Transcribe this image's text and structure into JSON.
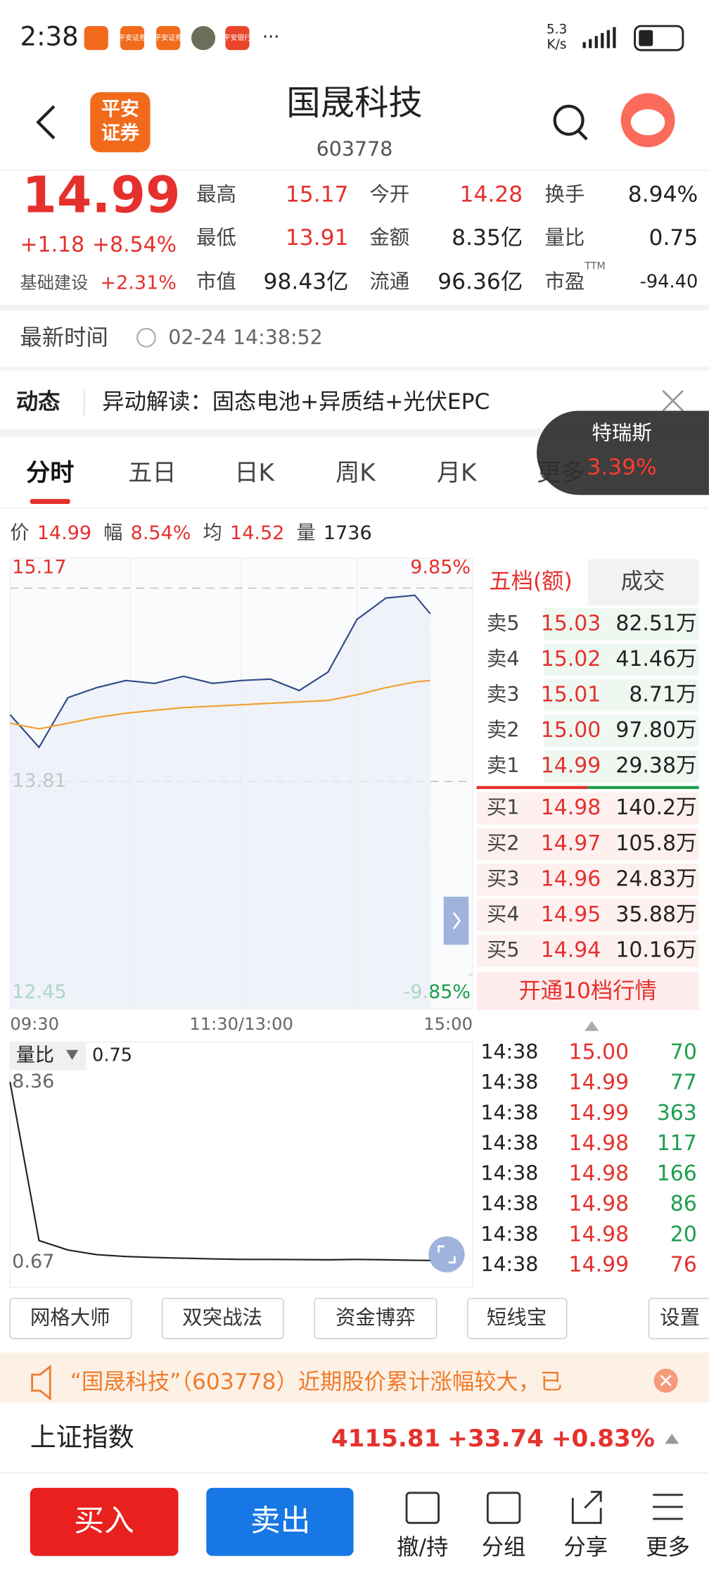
{
  "status_bar": {
    "time": "2:38",
    "apps": [
      "平安证券",
      "平安证券",
      "平安银行"
    ],
    "more": "···",
    "speed": "5.3",
    "speed_unit": "K/s"
  },
  "header": {
    "logo": [
      "平安",
      "证券"
    ],
    "title": "国晟科技",
    "code": "603778"
  },
  "quote": {
    "price": "14.99",
    "change": "+1.18",
    "change_pct": "+8.54%",
    "sector": "基础建设",
    "sector_pct": "+2.31%",
    "stats": [
      {
        "label": "最高",
        "value": "15.17",
        "color": "#e5312e"
      },
      {
        "label": "今开",
        "value": "14.28",
        "color": "#e5312e"
      },
      {
        "label": "换手",
        "value": "8.94%",
        "color": "#222222"
      },
      {
        "label": "最低",
        "value": "13.91",
        "color": "#e5312e"
      },
      {
        "label": "金额",
        "value": "8.35亿",
        "color": "#222222"
      },
      {
        "label": "量比",
        "value": "0.75",
        "color": "#222222"
      },
      {
        "label": "市值",
        "value": "98.43亿",
        "color": "#222222"
      },
      {
        "label": "流通",
        "value": "96.36亿",
        "color": "#222222"
      },
      {
        "label": "市盈",
        "label_sup": "TTM",
        "value": "-94.40",
        "color": "#222222"
      }
    ]
  },
  "update": {
    "label": "最新时间",
    "time": "02-24 14:38:52"
  },
  "news": {
    "tag": "动态",
    "text": "异动解读：固态电池+异质结+光伏EPC"
  },
  "popup": {
    "name": "特瑞斯",
    "pct": "3.39%"
  },
  "tabs": [
    "分时",
    "五日",
    "日K",
    "周K",
    "月K",
    "更多"
  ],
  "info_bar": [
    {
      "label": "价",
      "value": "14.99"
    },
    {
      "label": "幅",
      "value": "8.54%"
    },
    {
      "label": "均",
      "value": "14.52"
    },
    {
      "label": "量",
      "value": "1736"
    }
  ],
  "chart_data": [
    {
      "type": "line",
      "x": [
        "09:30",
        "09:45",
        "10:00",
        "10:15",
        "10:30",
        "10:45",
        "11:00",
        "11:15",
        "11:30",
        "13:15",
        "13:30",
        "13:45",
        "14:00",
        "14:15",
        "14:30",
        "14:38"
      ],
      "xticks": [
        "09:30",
        "11:30/13:00",
        "15:00"
      ],
      "ylim": [
        12.45,
        15.17
      ],
      "yticks": [
        12.45,
        13.81,
        15.17
      ],
      "y2lim": [
        -9.85,
        9.85
      ],
      "y2ticks": [
        {
          "value": -9.85,
          "label": "-9.85%"
        },
        {
          "value": 9.85,
          "label": "9.85%"
        }
      ],
      "series": [
        {
          "name": "价",
          "color": "#2f4a86",
          "values": [
            14.28,
            14.05,
            14.4,
            14.47,
            14.52,
            14.5,
            14.55,
            14.5,
            14.52,
            14.53,
            14.45,
            14.58,
            14.95,
            15.1,
            15.12,
            14.99
          ]
        },
        {
          "name": "均",
          "color": "#f0a030",
          "values": [
            14.22,
            14.18,
            14.22,
            14.26,
            14.29,
            14.31,
            14.33,
            14.34,
            14.35,
            14.36,
            14.37,
            14.38,
            14.42,
            14.47,
            14.51,
            14.52
          ]
        }
      ]
    },
    {
      "type": "line",
      "title": "量比",
      "current": "0.75",
      "x": [
        "09:30",
        "09:45",
        "10:00",
        "10:15",
        "10:30",
        "10:45",
        "11:00",
        "11:15",
        "11:30",
        "13:15",
        "13:30",
        "13:45",
        "14:00",
        "14:15",
        "14:30",
        "14:38"
      ],
      "xticks": [
        "09:30",
        "11:30/13:00",
        "15:00"
      ],
      "ylim": [
        0.67,
        8.36
      ],
      "yticks": [
        0.67,
        8.36
      ],
      "series": [
        {
          "name": "量比",
          "color": "#222222",
          "values": [
            8.36,
            1.6,
            1.2,
            1.0,
            0.92,
            0.88,
            0.85,
            0.82,
            0.8,
            0.8,
            0.79,
            0.78,
            0.8,
            0.78,
            0.76,
            0.75
          ]
        }
      ]
    }
  ],
  "order_book": {
    "tabs": [
      "五档(额)",
      "成交"
    ],
    "asks": [
      {
        "label": "卖5",
        "price": "15.03",
        "amount": "82.51万"
      },
      {
        "label": "卖4",
        "price": "15.02",
        "amount": "41.46万"
      },
      {
        "label": "卖3",
        "price": "15.01",
        "amount": "8.71万"
      },
      {
        "label": "卖2",
        "price": "15.00",
        "amount": "97.80万"
      },
      {
        "label": "卖1",
        "price": "14.99",
        "amount": "29.38万"
      }
    ],
    "bids": [
      {
        "label": "买1",
        "price": "14.98",
        "amount": "140.2万"
      },
      {
        "label": "买2",
        "price": "14.97",
        "amount": "105.8万"
      },
      {
        "label": "买3",
        "price": "14.96",
        "amount": "24.83万"
      },
      {
        "label": "买4",
        "price": "14.95",
        "amount": "35.88万"
      },
      {
        "label": "买5",
        "price": "14.94",
        "amount": "10.16万"
      }
    ],
    "upgrade": "开通10档行情"
  },
  "trades": [
    {
      "time": "14:38",
      "price": "15.00",
      "volume": "70",
      "color": "#1e9e4f"
    },
    {
      "time": "14:38",
      "price": "14.99",
      "volume": "77",
      "color": "#1e9e4f"
    },
    {
      "time": "14:38",
      "price": "14.99",
      "volume": "363",
      "color": "#1e9e4f"
    },
    {
      "time": "14:38",
      "price": "14.98",
      "volume": "117",
      "color": "#1e9e4f"
    },
    {
      "time": "14:38",
      "price": "14.98",
      "volume": "166",
      "color": "#1e9e4f"
    },
    {
      "time": "14:38",
      "price": "14.98",
      "volume": "86",
      "color": "#1e9e4f"
    },
    {
      "time": "14:38",
      "price": "14.98",
      "volume": "20",
      "color": "#1e9e4f"
    },
    {
      "time": "14:38",
      "price": "14.99",
      "volume": "76",
      "color": "#e5312e"
    }
  ],
  "tools": [
    "网格大师",
    "双突战法",
    "资金博弈",
    "短线宝",
    "设置"
  ],
  "warning": "“国晟科技”（603778）近期股价累计涨幅较大，已",
  "market_index": {
    "name": "上证指数",
    "value": "4115.81",
    "change": "+33.74",
    "change_pct": "+0.83%"
  },
  "actions": {
    "buy": "买入",
    "sell": "卖出",
    "items": [
      "撤/持",
      "分组",
      "分享",
      "更多"
    ]
  }
}
